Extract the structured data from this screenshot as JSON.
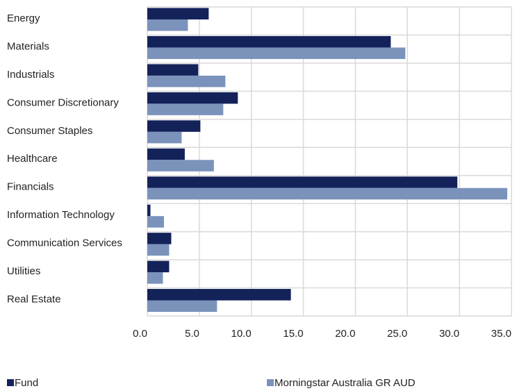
{
  "chart_data": {
    "type": "bar",
    "orientation": "horizontal",
    "categories": [
      "Energy",
      "Materials",
      "Industrials",
      "Consumer Discretionary",
      "Consumer Staples",
      "Healthcare",
      "Financials",
      "Information Technology",
      "Communication Services",
      "Utilities",
      "Real Estate"
    ],
    "series": [
      {
        "name": "Fund",
        "color": "#14225a",
        "values": [
          5.9,
          23.4,
          4.9,
          8.7,
          5.1,
          3.6,
          29.8,
          0.3,
          2.3,
          2.1,
          13.8
        ]
      },
      {
        "name": "Morningstar Australia GR AUD",
        "color": "#7b93bb",
        "values": [
          3.9,
          24.8,
          7.5,
          7.3,
          3.3,
          6.4,
          34.6,
          1.6,
          2.1,
          1.5,
          6.7
        ]
      }
    ],
    "xlim": [
      0,
      35
    ],
    "xticks": [
      {
        "value": 0,
        "label": "0.0"
      },
      {
        "value": 5,
        "label": "5.0"
      },
      {
        "value": 10,
        "label": "10.0"
      },
      {
        "value": 15,
        "label": "15.0"
      },
      {
        "value": 20,
        "label": "20.0"
      },
      {
        "value": 25,
        "label": "25.0"
      },
      {
        "value": 30,
        "label": "30.0"
      },
      {
        "value": 35,
        "label": "35.0"
      }
    ],
    "grid": true,
    "legend": "bottom"
  }
}
